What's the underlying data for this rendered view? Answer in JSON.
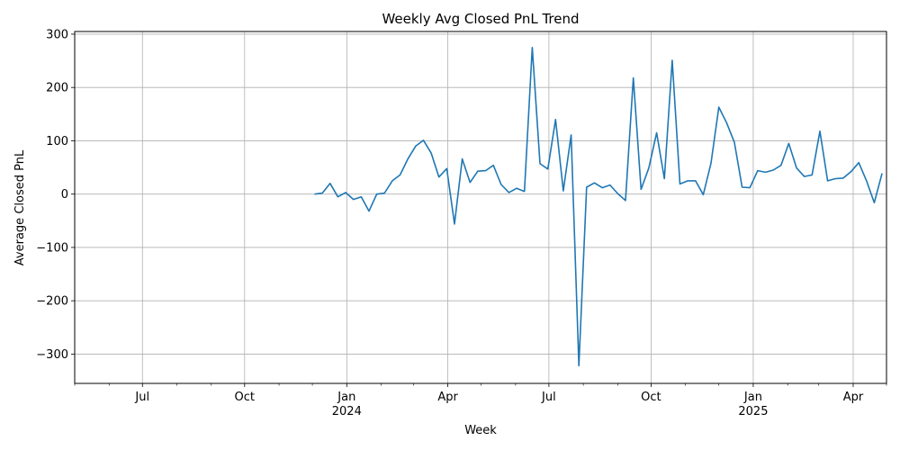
{
  "chart_data": {
    "type": "line",
    "title": "Weekly Avg Closed PnL Trend",
    "xlabel": "Week",
    "ylabel": "Average Closed PnL",
    "ylim": [
      -355,
      305
    ],
    "xlim": [
      "2023-05-01",
      "2025-05-01"
    ],
    "grid": true,
    "color": "#1f77b4",
    "yticks": [
      -300,
      -200,
      -100,
      0,
      100,
      200,
      300
    ],
    "ytick_labels": [
      "−300",
      "−200",
      "−100",
      "0",
      "100",
      "200",
      "300"
    ],
    "xticks": [
      {
        "date": "2023-07-01",
        "label": "Jul",
        "sublabel": ""
      },
      {
        "date": "2023-10-01",
        "label": "Oct",
        "sublabel": ""
      },
      {
        "date": "2024-01-01",
        "label": "Jan",
        "sublabel": "2024"
      },
      {
        "date": "2024-04-01",
        "label": "Apr",
        "sublabel": ""
      },
      {
        "date": "2024-07-01",
        "label": "Jul",
        "sublabel": ""
      },
      {
        "date": "2024-10-01",
        "label": "Oct",
        "sublabel": ""
      },
      {
        "date": "2025-01-01",
        "label": "Jan",
        "sublabel": "2025"
      },
      {
        "date": "2025-04-01",
        "label": "Apr",
        "sublabel": ""
      }
    ],
    "minor_xticks": [
      "2023-05-01",
      "2023-06-01",
      "2023-08-01",
      "2023-09-01",
      "2023-11-01",
      "2023-12-01",
      "2024-02-01",
      "2024-03-01",
      "2024-05-01",
      "2024-06-01",
      "2024-08-01",
      "2024-09-01",
      "2024-11-01",
      "2024-12-01",
      "2025-02-01",
      "2025-03-01",
      "2025-05-01"
    ],
    "series": [
      {
        "x": [
          "2023-12-03",
          "2023-12-10",
          "2023-12-17",
          "2023-12-24",
          "2023-12-31",
          "2024-01-07",
          "2024-01-14",
          "2024-01-21",
          "2024-01-28",
          "2024-02-04",
          "2024-02-11",
          "2024-02-18",
          "2024-02-25",
          "2024-03-03",
          "2024-03-10",
          "2024-03-17",
          "2024-03-24",
          "2024-03-31",
          "2024-04-07",
          "2024-04-14",
          "2024-04-21",
          "2024-04-28",
          "2024-05-05",
          "2024-05-12",
          "2024-05-19",
          "2024-05-26",
          "2024-06-02",
          "2024-06-09",
          "2024-06-16",
          "2024-06-23",
          "2024-06-30",
          "2024-07-07",
          "2024-07-14",
          "2024-07-21",
          "2024-07-28",
          "2024-08-04",
          "2024-08-11",
          "2024-08-18",
          "2024-08-25",
          "2024-09-01",
          "2024-09-08",
          "2024-09-15",
          "2024-09-22",
          "2024-09-29",
          "2024-10-06",
          "2024-10-13",
          "2024-10-20",
          "2024-10-27",
          "2024-11-03",
          "2024-11-10",
          "2024-11-17",
          "2024-11-24",
          "2024-12-01",
          "2024-12-08",
          "2024-12-15",
          "2024-12-22",
          "2024-12-29",
          "2025-01-05",
          "2025-01-12",
          "2025-01-19",
          "2025-01-26",
          "2025-02-02",
          "2025-02-09",
          "2025-02-16",
          "2025-02-23",
          "2025-03-02",
          "2025-03-09",
          "2025-03-16",
          "2025-03-23",
          "2025-03-30",
          "2025-04-06",
          "2025-04-13",
          "2025-04-20",
          "2025-04-27"
        ],
        "values": [
          0,
          2,
          20,
          -5,
          3,
          -10,
          -5,
          -32,
          0,
          2,
          25,
          36,
          66,
          90,
          101,
          77,
          32,
          48,
          -56,
          66,
          22,
          43,
          44,
          54,
          18,
          3,
          11,
          5,
          275,
          57,
          47,
          140,
          6,
          111,
          -322,
          13,
          21,
          12,
          17,
          1,
          -12,
          218,
          9,
          49,
          115,
          29,
          251,
          19,
          25,
          25,
          -1,
          58,
          163,
          134,
          97,
          13,
          12,
          44,
          41,
          45,
          54,
          95,
          49,
          33,
          36,
          118,
          25,
          29,
          30,
          42,
          59,
          25,
          -16,
          39
        ]
      }
    ]
  }
}
